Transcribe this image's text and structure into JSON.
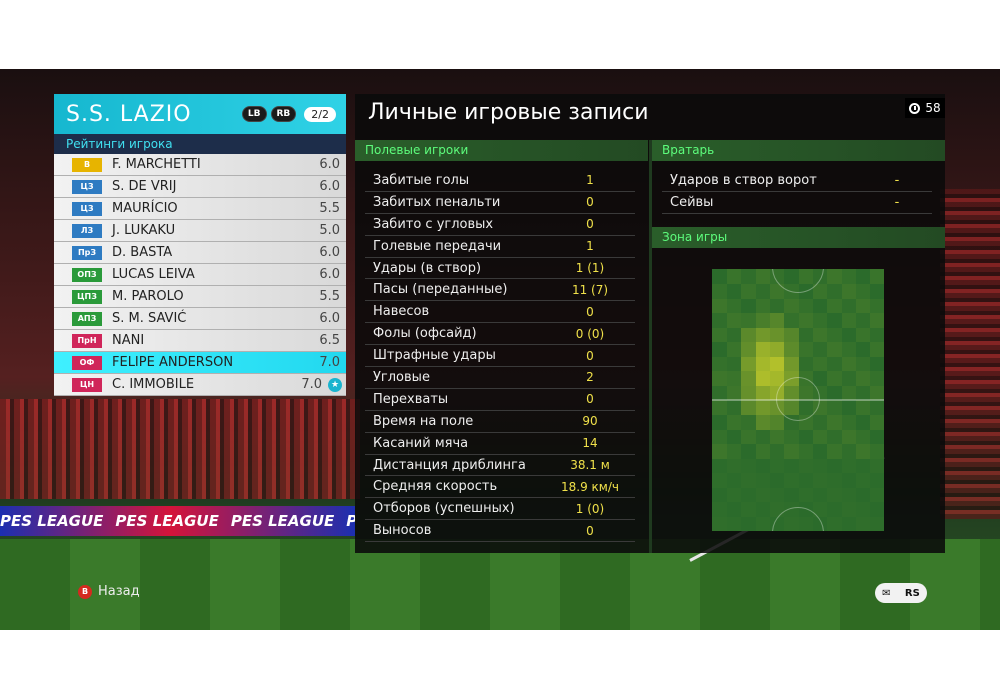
{
  "team": {
    "name": "S.S. LAZIO",
    "btn_left": "LB",
    "btn_right": "RB",
    "page": "2/2",
    "ratings_title": "Рейтинги игрока",
    "players": [
      {
        "pos": "В",
        "pos_color": "#e7b400",
        "name": "F. MARCHETTI",
        "rating": "6.0"
      },
      {
        "pos": "ЦЗ",
        "pos_color": "#2e7bc2",
        "name": "S. DE VRIJ",
        "rating": "6.0"
      },
      {
        "pos": "ЦЗ",
        "pos_color": "#2e7bc2",
        "name": "MAURÍCIO",
        "rating": "5.5"
      },
      {
        "pos": "ЛЗ",
        "pos_color": "#2e7bc2",
        "name": "J. LUKAKU",
        "rating": "5.0"
      },
      {
        "pos": "ПрЗ",
        "pos_color": "#2e7bc2",
        "name": "D. BASTA",
        "rating": "6.0"
      },
      {
        "pos": "ОПЗ",
        "pos_color": "#2a9a3a",
        "name": "LUCAS LEIVA",
        "rating": "6.0"
      },
      {
        "pos": "ЦПЗ",
        "pos_color": "#2a9a3a",
        "name": "M. PAROLO",
        "rating": "5.5"
      },
      {
        "pos": "АПЗ",
        "pos_color": "#2a9a3a",
        "name": "S. M. SAVIĆ",
        "rating": "6.0"
      },
      {
        "pos": "ПрН",
        "pos_color": "#d0255a",
        "name": "NANI",
        "rating": "6.5"
      },
      {
        "pos": "ОФ",
        "pos_color": "#d0255a",
        "name": "FELIPE ANDERSON",
        "rating": "7.0"
      },
      {
        "pos": "ЦН",
        "pos_color": "#d0255a",
        "name": "C. IMMOBILE",
        "rating": "7.0"
      }
    ],
    "selected_index": 9,
    "star_index": 10,
    "star_icon": "star-icon"
  },
  "main": {
    "title": "Личные игровые записи",
    "timer": "58",
    "field_head": "Полевые игроки",
    "gk_head": "Вратарь",
    "zone_head": "Зона игры",
    "stats": [
      {
        "label": "Забитые голы",
        "value": "1"
      },
      {
        "label": "Забитых пенальти",
        "value": "0"
      },
      {
        "label": "Забито с угловых",
        "value": "0"
      },
      {
        "label": "Голевые передачи",
        "value": "1"
      },
      {
        "label": "Удары (в створ)",
        "value": "1 (1)"
      },
      {
        "label": "Пасы (переданные)",
        "value": "11 (7)"
      },
      {
        "label": "Навесов",
        "value": "0"
      },
      {
        "label": "Фолы (офсайд)",
        "value": "0 (0)"
      },
      {
        "label": "Штрафные удары",
        "value": "0"
      },
      {
        "label": "Угловые",
        "value": "2"
      },
      {
        "label": "Перехваты",
        "value": "0"
      },
      {
        "label": "Время на поле",
        "value": "90"
      },
      {
        "label": "Касаний мяча",
        "value": "14"
      },
      {
        "label": "Дистанция дриблинга",
        "value": "38.1 м"
      },
      {
        "label": "Средняя скорость",
        "value": "18.9 км/ч"
      },
      {
        "label": "Отборов (успешных)",
        "value": "1 (0)"
      },
      {
        "label": "Выносов",
        "value": "0"
      }
    ],
    "gk_stats": [
      {
        "label": "Ударов в створ ворот",
        "value": "-"
      },
      {
        "label": "Сейвы",
        "value": "-"
      }
    ]
  },
  "footer": {
    "back_label": "Назад",
    "back_icon": "B"
  },
  "adboard_text": "PES LEAGUE"
}
